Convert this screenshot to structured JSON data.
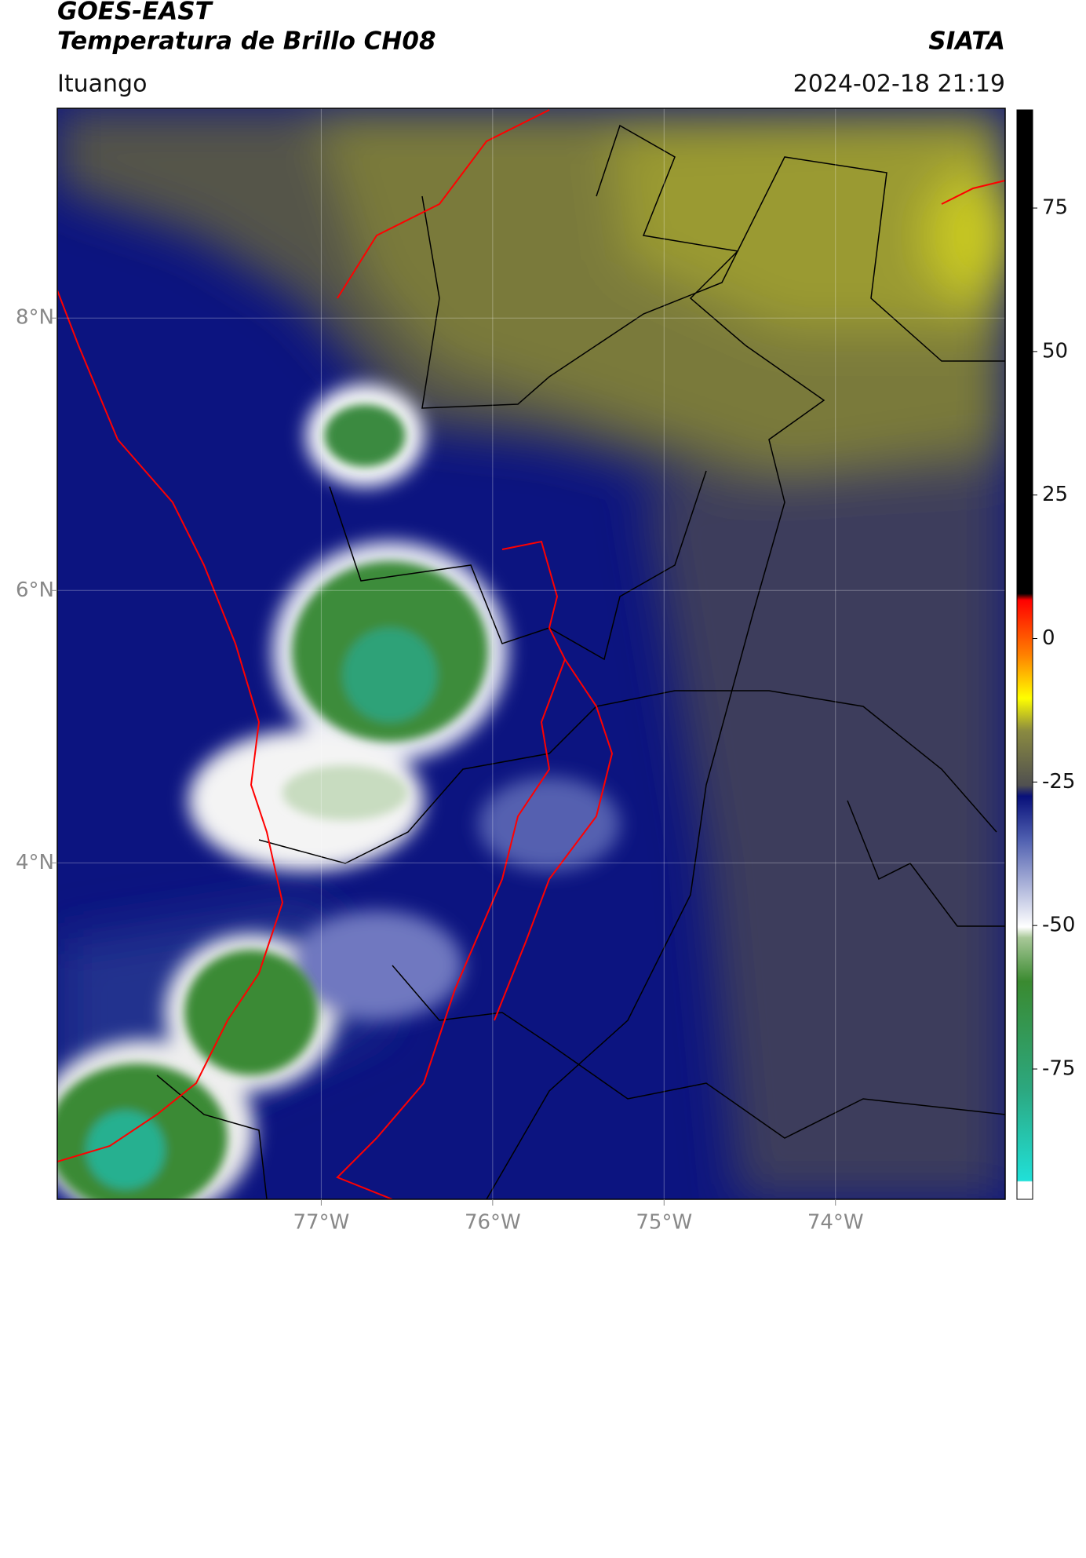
{
  "header": {
    "title_line1": "GOES-EAST",
    "title_line2": "Temperatura de Brillo CH08",
    "org": "SIATA",
    "location": "Ituango",
    "datetime": "2024-02-18 21:19"
  },
  "map": {
    "xlim": [
      -78.54,
      -73.01
    ],
    "ylim": [
      1.53,
      9.54
    ],
    "xticks": [
      {
        "value": -77,
        "label": "77°W"
      },
      {
        "value": -76,
        "label": "76°W"
      },
      {
        "value": -75,
        "label": "75°W"
      },
      {
        "value": -74,
        "label": "74°W"
      }
    ],
    "yticks": [
      {
        "value": 4,
        "label": "4°N"
      },
      {
        "value": 6,
        "label": "6°N"
      },
      {
        "value": 8,
        "label": "8°N"
      }
    ],
    "grid": true
  },
  "colorbar": {
    "lim": [
      -97.7,
      92.1
    ],
    "ticks": [
      -75,
      -50,
      -25,
      0,
      25,
      50,
      75
    ]
  }
}
